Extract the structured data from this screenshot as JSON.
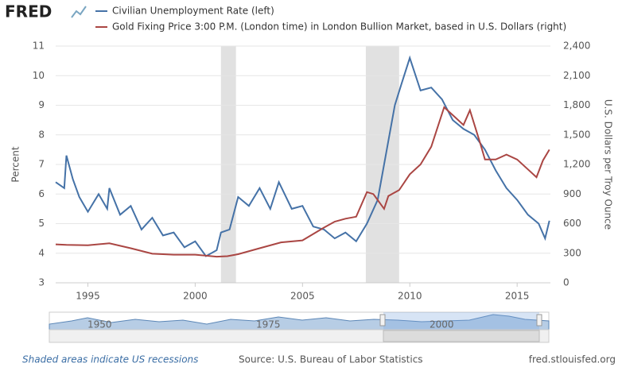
{
  "chart_data": {
    "type": "line",
    "logo": "FRED",
    "ylabel": "Percent",
    "y2label": "U.S. Dollars per Troy Ounce",
    "xlim": [
      1993.5,
      2016.55
    ],
    "xticks": [
      1995,
      2000,
      2005,
      2010,
      2015
    ],
    "ylim": [
      3,
      11
    ],
    "yticks": [
      3,
      4,
      5,
      6,
      7,
      8,
      9,
      10,
      11
    ],
    "y2lim": [
      0,
      2400
    ],
    "y2ticks": [
      0,
      300,
      600,
      900,
      {
        "value": 1200,
        "label": "1,200"
      },
      {
        "value": 1500,
        "label": "1,500"
      },
      {
        "value": 1800,
        "label": "1,800"
      },
      {
        "value": 2100,
        "label": "2,100"
      },
      {
        "value": 2400,
        "label": "2,400"
      }
    ],
    "grid": true,
    "recessions": [
      [
        2001.2,
        2001.9
      ],
      [
        2007.95,
        2009.5
      ]
    ],
    "series": [
      {
        "name": "Civilian Unemployment Rate (left)",
        "color": "#4572a7",
        "axis": "y",
        "x": [
          1993.5,
          1993.9,
          1994.0,
          1994.3,
          1994.6,
          1995.0,
          1995.5,
          1995.9,
          1996.0,
          1996.5,
          1997.0,
          1997.5,
          1998.0,
          1998.5,
          1999.0,
          1999.5,
          2000.0,
          2000.5,
          2001.0,
          2001.2,
          2001.6,
          2002.0,
          2002.5,
          2003.0,
          2003.5,
          2003.9,
          2004.5,
          2005.0,
          2005.5,
          2006.0,
          2006.5,
          2007.0,
          2007.5,
          2008.0,
          2008.5,
          2009.0,
          2009.3,
          2009.6,
          2010.0,
          2010.5,
          2011.0,
          2011.5,
          2012.0,
          2012.5,
          2013.0,
          2013.5,
          2014.0,
          2014.5,
          2015.0,
          2015.5,
          2016.0,
          2016.3,
          2016.5
        ],
        "values": [
          6.4,
          6.2,
          7.3,
          6.5,
          5.9,
          5.4,
          6.0,
          5.5,
          6.2,
          5.3,
          5.6,
          4.8,
          5.2,
          4.6,
          4.7,
          4.2,
          4.4,
          3.9,
          4.1,
          4.7,
          4.8,
          5.9,
          5.6,
          6.2,
          5.5,
          6.4,
          5.5,
          5.6,
          4.9,
          4.8,
          4.5,
          4.7,
          4.4,
          5.0,
          5.8,
          7.8,
          9.0,
          9.7,
          10.6,
          9.5,
          9.6,
          9.2,
          8.5,
          8.2,
          8.0,
          7.5,
          6.8,
          6.2,
          5.8,
          5.3,
          5.0,
          4.5,
          5.1
        ]
      },
      {
        "name": "Gold Fixing Price 3:00 P.M. (London time) in London Bullion Market, based in U.S. Dollars (right)",
        "color": "#aa4643",
        "axis": "y2",
        "x": [
          1993.5,
          1994.0,
          1995.0,
          1996.0,
          1997.0,
          1998.0,
          1999.0,
          2000.0,
          2001.0,
          2001.5,
          2002.0,
          2003.0,
          2004.0,
          2005.0,
          2006.0,
          2006.5,
          2007.0,
          2007.5,
          2008.0,
          2008.3,
          2008.8,
          2009.0,
          2009.5,
          2010.0,
          2010.5,
          2011.0,
          2011.6,
          2012.0,
          2012.5,
          2012.8,
          2013.3,
          2013.5,
          2014.0,
          2014.5,
          2015.0,
          2015.5,
          2015.9,
          2016.2,
          2016.5
        ],
        "values": [
          390,
          385,
          380,
          400,
          350,
          295,
          285,
          285,
          265,
          270,
          290,
          350,
          410,
          430,
          560,
          620,
          650,
          670,
          920,
          900,
          750,
          880,
          940,
          1100,
          1200,
          1380,
          1780,
          1700,
          1600,
          1750,
          1400,
          1250,
          1250,
          1300,
          1250,
          1150,
          1070,
          1240,
          1350
        ]
      }
    ]
  },
  "navigator": {
    "labels": [
      "1950",
      "1975",
      "2000"
    ]
  },
  "footer": {
    "note": "Shaded areas indicate US recessions",
    "source": "Source: U.S. Bureau of Labor Statistics",
    "site": "fred.stlouisfed.org"
  }
}
